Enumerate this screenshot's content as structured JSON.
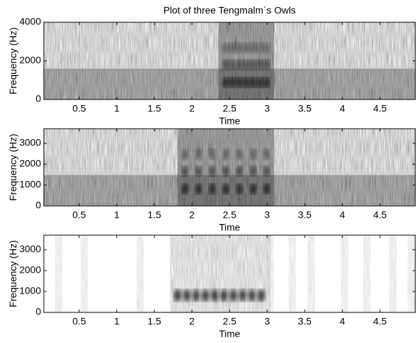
{
  "chart_data": [
    {
      "type": "spectrogram",
      "title": "Plot of three Tengmalm´s Owls",
      "x_label": "Time",
      "y_label": "Frequency (Hz)",
      "xlim": [
        0.03,
        4.97
      ],
      "xticks": [
        0.5,
        1,
        1.5,
        2,
        2.5,
        3,
        3.5,
        4,
        4.5
      ],
      "ylim": [
        0,
        4000
      ],
      "yticks": [
        0,
        2000,
        4000
      ]
    },
    {
      "type": "spectrogram",
      "x_label": "Time",
      "y_label": "Frequency (Hz)",
      "xlim": [
        0.03,
        4.97
      ],
      "xticks": [
        0.5,
        1,
        1.5,
        2,
        2.5,
        3,
        3.5,
        4,
        4.5
      ],
      "ylim": [
        0,
        3700
      ],
      "yticks": [
        0,
        1000,
        2000,
        3000
      ]
    },
    {
      "type": "spectrogram",
      "x_label": "Time",
      "y_label": "Frequency (Hz)",
      "xlim": [
        0.03,
        4.97
      ],
      "xticks": [
        0.5,
        1,
        1.5,
        2,
        2.5,
        3,
        3.5,
        4,
        4.5
      ],
      "ylim": [
        0,
        3700
      ],
      "yticks": [
        0,
        1000,
        2000,
        3000
      ]
    }
  ]
}
